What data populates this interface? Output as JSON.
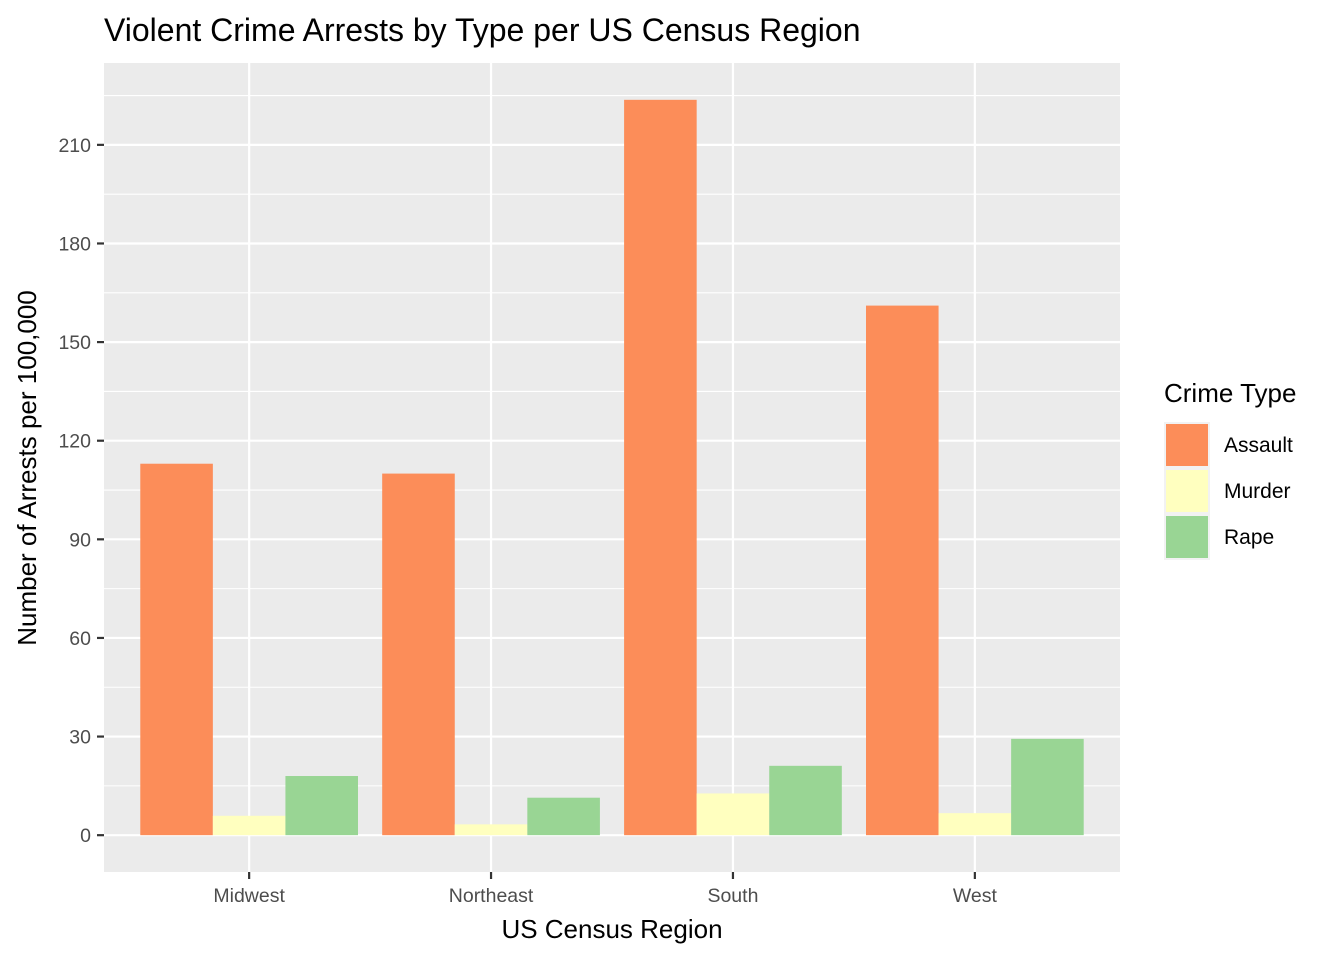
{
  "chart_data": {
    "type": "bar",
    "title": "Violent Crime Arrests by Type per US Census Region",
    "xlabel": "US Census Region",
    "ylabel": "Number of Arrests per 100,000",
    "categories": [
      "Midwest",
      "Northeast",
      "South",
      "West"
    ],
    "series": [
      {
        "name": "Assault",
        "color": "#fc8d59",
        "values": [
          113.0,
          110.0,
          223.7,
          161.1
        ]
      },
      {
        "name": "Murder",
        "color": "#ffffbf",
        "values": [
          5.9,
          3.3,
          12.7,
          6.7
        ]
      },
      {
        "name": "Rape",
        "color": "#99d594",
        "values": [
          18.0,
          11.4,
          21.1,
          29.3
        ]
      }
    ],
    "ylim": [
      -11.2,
      234.9
    ],
    "yticks": [
      0,
      30,
      60,
      90,
      120,
      150,
      180,
      210
    ],
    "ytick_labels": [
      "0",
      "30",
      "60",
      "90",
      "120",
      "150",
      "180",
      "210"
    ],
    "grid": true,
    "legend": {
      "title": "Crime Type",
      "position": "right"
    },
    "panel_color": "#ebebeb"
  }
}
